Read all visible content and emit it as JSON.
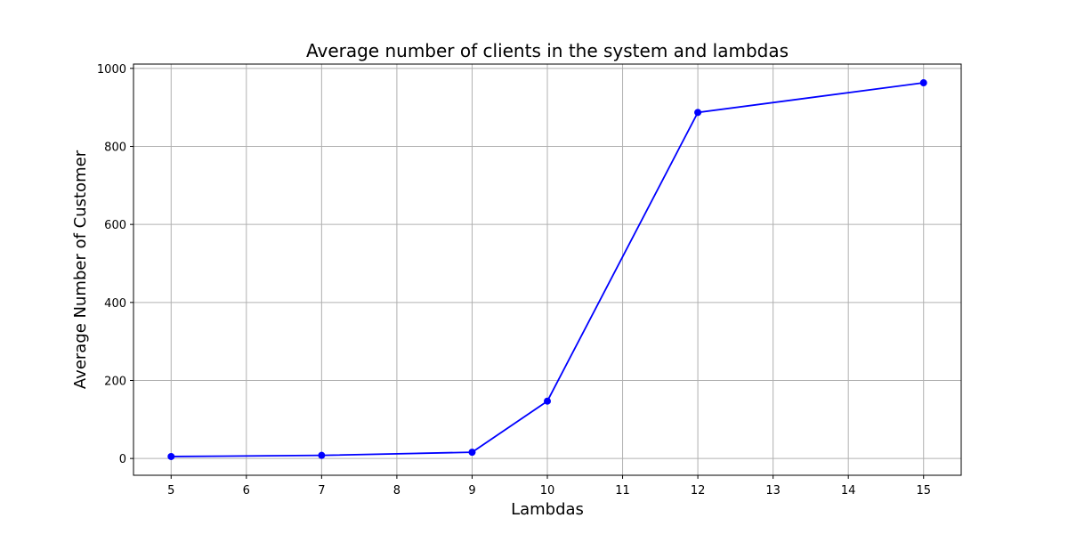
{
  "chart_data": {
    "type": "line",
    "title": "Average number of clients in the system and lambdas",
    "xlabel": "Lambdas",
    "ylabel": "Average Number of Customer",
    "x": [
      5,
      7,
      9,
      10,
      12,
      15
    ],
    "series": [
      {
        "values": [
          5,
          8,
          16,
          147,
          887,
          963
        ],
        "color": "#0000ff",
        "marker": "circle"
      }
    ],
    "xlim": [
      4.5,
      15.5
    ],
    "ylim": [
      -43,
      1011
    ],
    "xticks": [
      5,
      6,
      7,
      8,
      9,
      10,
      11,
      12,
      13,
      14,
      15
    ],
    "xtick_labels": [
      "5",
      "6",
      "7",
      "8",
      "9",
      "10",
      "11",
      "12",
      "13",
      "14",
      "15"
    ],
    "yticks": [
      0,
      200,
      400,
      600,
      800,
      1000
    ],
    "ytick_labels": [
      "0",
      "200",
      "400",
      "600",
      "800",
      "1000"
    ],
    "grid": true,
    "legend": "none"
  }
}
